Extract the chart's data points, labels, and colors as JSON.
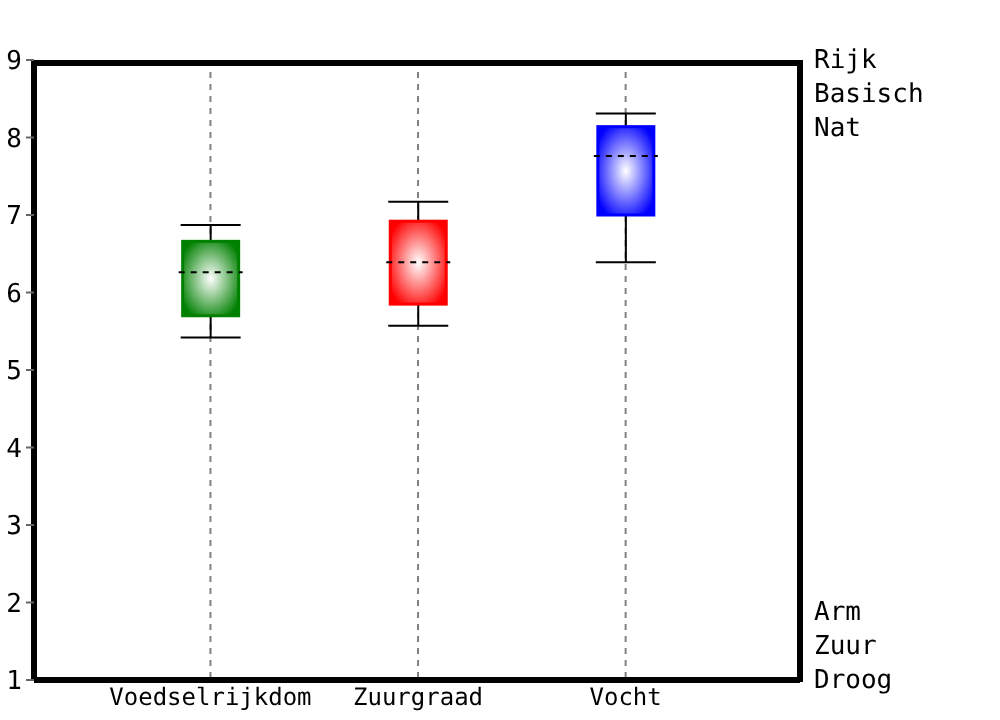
{
  "chart_data": {
    "type": "box",
    "categories": [
      "Voedselrijkdom",
      "Zuurgraad",
      "Vocht"
    ],
    "series": [
      {
        "colors": [
          "#008000",
          "#ff0000",
          "#0000ff"
        ],
        "boxes": [
          {
            "low": 5.42,
            "q1": 5.7,
            "median": 6.26,
            "q3": 6.66,
            "high": 6.87
          },
          {
            "low": 5.57,
            "q1": 5.85,
            "median": 6.39,
            "q3": 6.92,
            "high": 7.17
          },
          {
            "low": 6.39,
            "q1": 7.0,
            "median": 7.76,
            "q3": 8.14,
            "high": 8.31
          }
        ]
      }
    ],
    "ylim": [
      1,
      9
    ],
    "yticks": [
      1,
      2,
      3,
      4,
      5,
      6,
      7,
      8,
      9
    ],
    "annotations": [
      "Rijk",
      "Basisch",
      "Nat",
      "Arm",
      "Zuur",
      "Droog"
    ],
    "grid": true
  }
}
